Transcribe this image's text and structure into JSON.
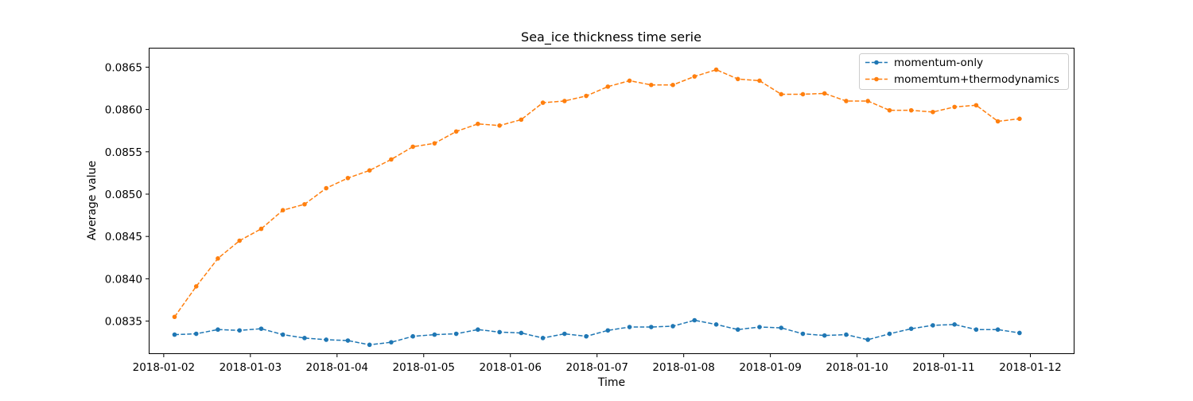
{
  "chart_data": {
    "type": "line",
    "title": "Sea_ice thickness time serie",
    "xlabel": "Time",
    "ylabel": "Average value",
    "xlim": [
      "2018-01-01T20:04",
      "2018-01-12T12:00"
    ],
    "ylim": [
      0.08312,
      0.08672
    ],
    "x_ticks": [
      "2018-01-02",
      "2018-01-03",
      "2018-01-04",
      "2018-01-05",
      "2018-01-06",
      "2018-01-07",
      "2018-01-08",
      "2018-01-09",
      "2018-01-10",
      "2018-01-11",
      "2018-01-12"
    ],
    "y_ticks": [
      0.0835,
      0.084,
      0.0845,
      0.085,
      0.0855,
      0.086,
      0.0865
    ],
    "y_tick_labels": [
      "0.0835",
      "0.0840",
      "0.0845",
      "0.0850",
      "0.0855",
      "0.0860",
      "0.0865"
    ],
    "grid": false,
    "legend_position": "top-right",
    "x": [
      "2018-01-02T03:00",
      "2018-01-02T09:00",
      "2018-01-02T15:00",
      "2018-01-02T21:00",
      "2018-01-03T03:00",
      "2018-01-03T09:00",
      "2018-01-03T15:00",
      "2018-01-03T21:00",
      "2018-01-04T03:00",
      "2018-01-04T09:00",
      "2018-01-04T15:00",
      "2018-01-04T21:00",
      "2018-01-05T03:00",
      "2018-01-05T09:00",
      "2018-01-05T15:00",
      "2018-01-05T21:00",
      "2018-01-06T03:00",
      "2018-01-06T09:00",
      "2018-01-06T15:00",
      "2018-01-06T21:00",
      "2018-01-07T03:00",
      "2018-01-07T09:00",
      "2018-01-07T15:00",
      "2018-01-07T21:00",
      "2018-01-08T03:00",
      "2018-01-08T09:00",
      "2018-01-08T15:00",
      "2018-01-08T21:00",
      "2018-01-09T03:00",
      "2018-01-09T09:00",
      "2018-01-09T15:00",
      "2018-01-09T21:00",
      "2018-01-10T03:00",
      "2018-01-10T09:00",
      "2018-01-10T15:00",
      "2018-01-10T21:00",
      "2018-01-11T03:00",
      "2018-01-11T09:00",
      "2018-01-11T15:00",
      "2018-01-11T21:00"
    ],
    "series": [
      {
        "name": "momentum-only",
        "color": "#1f77b4",
        "values": [
          0.08334,
          0.08335,
          0.0834,
          0.08339,
          0.08341,
          0.08334,
          0.0833,
          0.08328,
          0.08327,
          0.08322,
          0.08325,
          0.08332,
          0.08334,
          0.08335,
          0.0834,
          0.08337,
          0.08336,
          0.0833,
          0.08335,
          0.08332,
          0.08339,
          0.08343,
          0.08343,
          0.08344,
          0.08351,
          0.08346,
          0.0834,
          0.08343,
          0.08342,
          0.08335,
          0.08333,
          0.08334,
          0.08328,
          0.08335,
          0.08341,
          0.08345,
          0.08346,
          0.0834,
          0.0834,
          0.08336
        ]
      },
      {
        "name": "momemtum+thermodynamics",
        "color": "#ff7f0e",
        "values": [
          0.08355,
          0.08391,
          0.08424,
          0.08445,
          0.08459,
          0.08481,
          0.08488,
          0.08507,
          0.08519,
          0.08528,
          0.08541,
          0.08556,
          0.0856,
          0.08574,
          0.08583,
          0.08581,
          0.08588,
          0.08608,
          0.0861,
          0.08616,
          0.08627,
          0.08634,
          0.08629,
          0.08629,
          0.08639,
          0.08647,
          0.08636,
          0.08634,
          0.08618,
          0.08618,
          0.08619,
          0.0861,
          0.0861,
          0.08599,
          0.08599,
          0.08597,
          0.08603,
          0.08605,
          0.08586,
          0.08589
        ]
      }
    ]
  }
}
